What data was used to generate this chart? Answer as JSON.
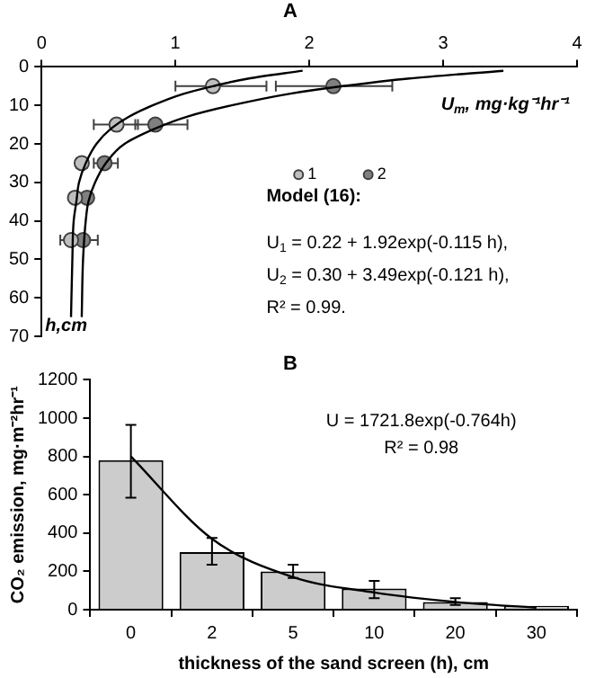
{
  "chart_data": [
    {
      "type": "scatter",
      "title": "A",
      "xlabel": "U$_{m}$, mg·kg⁻¹hr⁻¹",
      "ylabel": "h,cm",
      "xlim": [
        0,
        4
      ],
      "xticks": [
        0,
        1,
        2,
        3,
        4
      ],
      "ylim": [
        70,
        0
      ],
      "yticks": [
        0,
        10,
        20,
        30,
        40,
        50,
        60,
        70
      ],
      "grid": false,
      "legend": "right",
      "annotations": [
        "Model (16):",
        "U$_{1}$ = 0.22 + 1.92exp(-0.115 h),",
        "U$_{2}$ = 0.30 + 3.49exp(-0.121 h),",
        "R² = 0.99."
      ],
      "series": [
        {
          "type": "line",
          "color": "#000000",
          "marker": "none",
          "x": [
            1.95,
            1.55,
            1.28,
            1.06,
            0.83,
            0.65,
            0.52,
            0.41,
            0.33,
            0.28,
            0.26,
            0.24,
            0.23,
            0.22
          ],
          "values": [
            1,
            3,
            5,
            7,
            10,
            13,
            16,
            20,
            25,
            30,
            35,
            40,
            50,
            65
          ]
        },
        {
          "type": "line",
          "color": "#000000",
          "marker": "none",
          "x": [
            3.45,
            2.75,
            2.25,
            1.85,
            1.42,
            1.08,
            0.85,
            0.62,
            0.48,
            0.4,
            0.35,
            0.33,
            0.31,
            0.3
          ],
          "values": [
            1,
            3,
            5,
            7,
            10,
            13,
            16,
            20,
            25,
            30,
            35,
            40,
            50,
            65
          ]
        },
        {
          "name": "1",
          "color": "#bfbfbf",
          "marker": "circle",
          "x": [
            1.28,
            0.56,
            0.3,
            0.25,
            0.22
          ],
          "values": [
            5,
            15,
            25,
            34,
            45
          ],
          "xerrors": [
            [
              1.0,
              1.68
            ],
            [
              0.39,
              0.72
            ],
            [
              0.26,
              0.34
            ],
            null,
            null
          ]
        },
        {
          "name": "2",
          "color": "#808080",
          "marker": "circle",
          "x": [
            2.18,
            0.85,
            0.47,
            0.34,
            0.31
          ],
          "values": [
            5,
            15,
            25,
            34,
            45
          ],
          "xerrors": [
            [
              1.75,
              2.62
            ],
            [
              0.7,
              1.09
            ],
            [
              0.39,
              0.57
            ],
            null,
            [
              0.14,
              0.42
            ]
          ]
        }
      ]
    },
    {
      "type": "bar",
      "title": "B",
      "xlabel": "thickness of the sand screen (h), cm",
      "ylabel": "CO₂ emission, mg·m⁻²hr⁻¹",
      "categories": [
        "0",
        "2",
        "5",
        "10",
        "20",
        "30"
      ],
      "ylim": [
        0,
        1200
      ],
      "yticks": [
        0,
        200,
        400,
        600,
        800,
        1000,
        1200
      ],
      "grid": false,
      "legend": false,
      "annotations": [
        "U = 1721.8exp(-0.764h)",
        "R² = 0.98"
      ],
      "series": [
        {
          "color": "#cccccc",
          "values": [
            780,
            300,
            200,
            110,
            40,
            20
          ],
          "errors": [
            [
              585,
              965
            ],
            [
              235,
              375
            ],
            [
              165,
              235
            ],
            [
              60,
              150
            ],
            [
              25,
              60
            ],
            null
          ]
        },
        {
          "type": "line",
          "color": "#000000",
          "marker": "none",
          "values": [
            800,
            370,
            170,
            90,
            40,
            10
          ]
        }
      ]
    }
  ]
}
